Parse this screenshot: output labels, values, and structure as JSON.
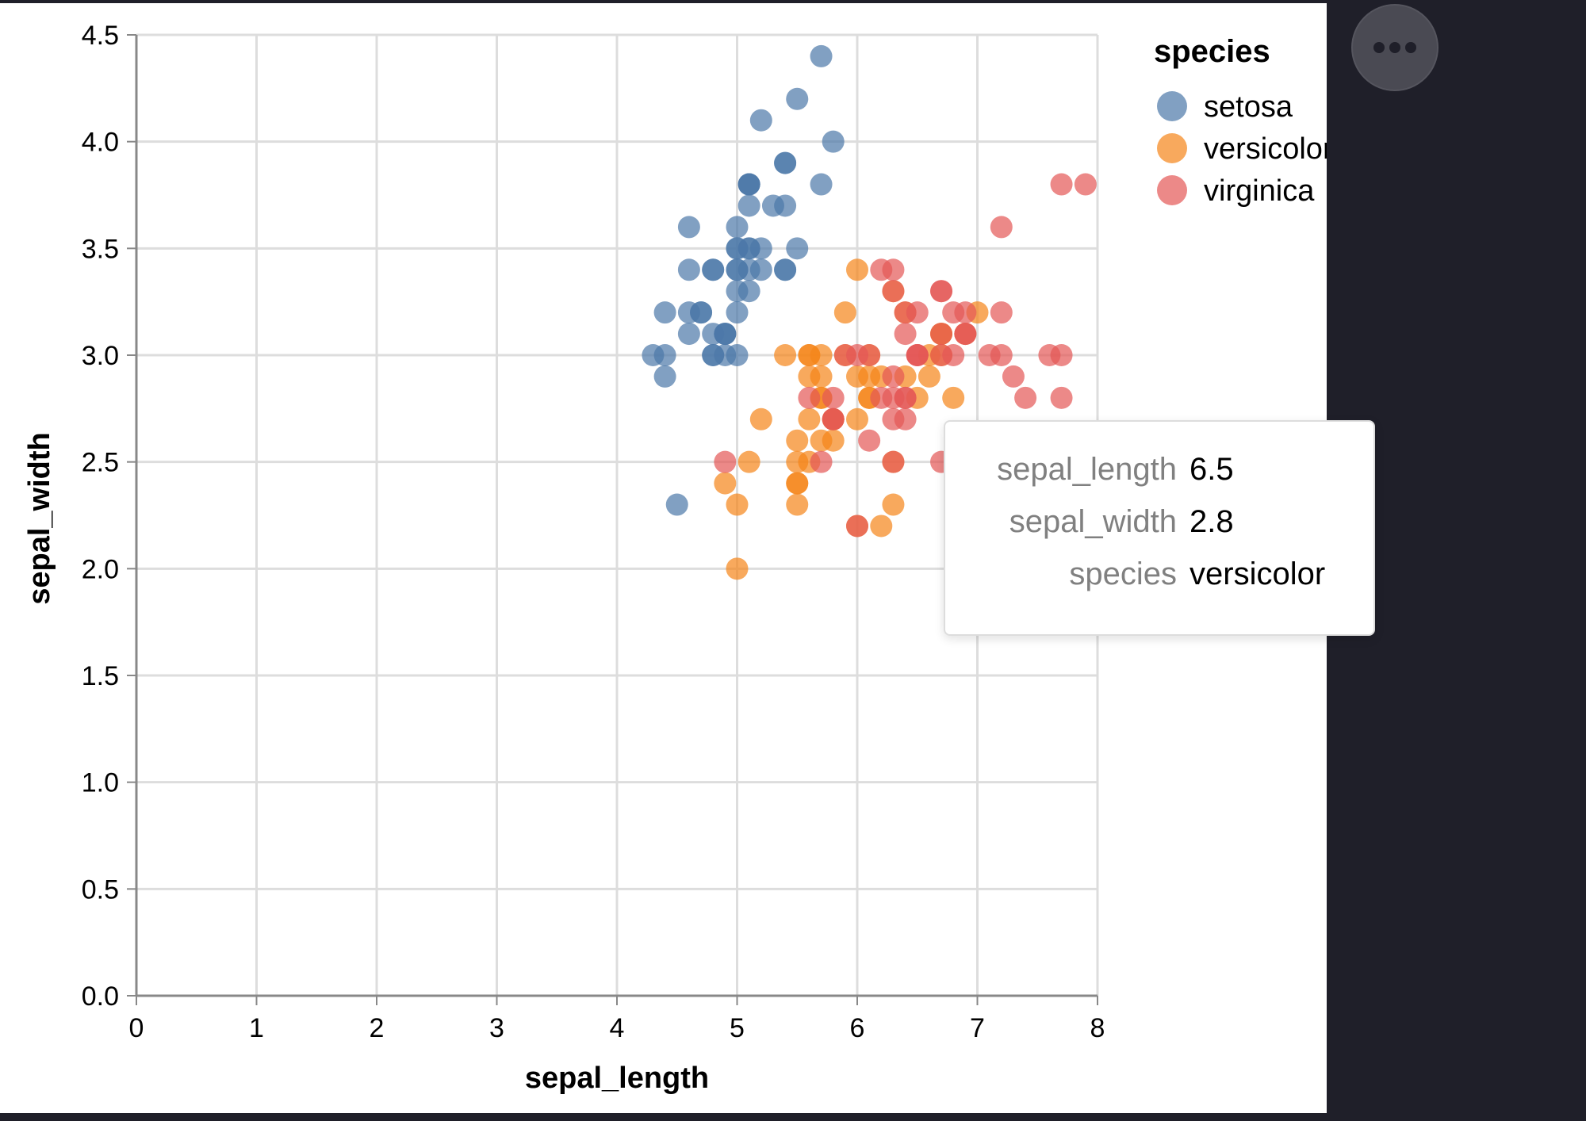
{
  "chart_data": {
    "type": "scatter",
    "xlabel": "sepal_length",
    "ylabel": "sepal_width",
    "xlim": [
      0,
      8
    ],
    "ylim": [
      0,
      4.5
    ],
    "xticks": [
      "0",
      "1",
      "2",
      "3",
      "4",
      "5",
      "6",
      "7",
      "8"
    ],
    "yticks": [
      "0.0",
      "0.5",
      "1.0",
      "1.5",
      "2.0",
      "2.5",
      "3.0",
      "3.5",
      "4.0",
      "4.5"
    ],
    "grid": true,
    "legend": {
      "title": "species",
      "position": "top-right"
    },
    "series": [
      {
        "name": "setosa",
        "color": "#4c78a8",
        "x": [
          5.1,
          4.9,
          4.7,
          4.6,
          5.0,
          5.4,
          4.6,
          5.0,
          4.4,
          4.9,
          5.4,
          4.8,
          4.8,
          4.3,
          5.8,
          5.7,
          5.4,
          5.1,
          5.7,
          5.1,
          5.4,
          5.1,
          4.6,
          5.1,
          4.8,
          5.0,
          5.0,
          5.2,
          5.2,
          4.7,
          4.8,
          5.4,
          5.2,
          5.5,
          4.9,
          5.0,
          5.5,
          4.9,
          4.4,
          5.1,
          5.0,
          4.5,
          4.4,
          5.0,
          5.1,
          4.8,
          5.1,
          4.6,
          5.3,
          5.0
        ],
        "y": [
          3.5,
          3.0,
          3.2,
          3.1,
          3.6,
          3.9,
          3.4,
          3.4,
          2.9,
          3.1,
          3.7,
          3.4,
          3.0,
          3.0,
          4.0,
          4.4,
          3.9,
          3.5,
          3.8,
          3.8,
          3.4,
          3.7,
          3.6,
          3.3,
          3.4,
          3.0,
          3.4,
          3.5,
          3.4,
          3.2,
          3.1,
          3.4,
          4.1,
          4.2,
          3.1,
          3.2,
          3.5,
          3.1,
          3.0,
          3.4,
          3.5,
          2.3,
          3.2,
          3.5,
          3.8,
          3.0,
          3.8,
          3.2,
          3.7,
          3.3
        ]
      },
      {
        "name": "versicolor",
        "color": "#f58518",
        "x": [
          7.0,
          6.4,
          6.9,
          5.5,
          6.5,
          5.7,
          6.3,
          4.9,
          6.6,
          5.2,
          5.0,
          5.9,
          6.0,
          6.1,
          5.6,
          6.7,
          5.6,
          5.8,
          6.2,
          5.6,
          5.9,
          6.1,
          6.3,
          6.1,
          6.4,
          6.6,
          6.8,
          6.7,
          6.0,
          5.7,
          5.5,
          5.5,
          5.8,
          6.0,
          5.4,
          6.0,
          6.7,
          6.3,
          5.6,
          5.5,
          5.5,
          6.1,
          5.8,
          5.0,
          5.6,
          5.7,
          5.7,
          6.2,
          5.1,
          5.7
        ],
        "y": [
          3.2,
          3.2,
          3.1,
          2.3,
          2.8,
          2.8,
          3.3,
          2.4,
          2.9,
          2.7,
          2.0,
          3.0,
          2.2,
          2.9,
          2.9,
          3.1,
          3.0,
          2.7,
          2.2,
          2.5,
          3.2,
          2.8,
          2.5,
          2.8,
          2.9,
          3.0,
          2.8,
          3.0,
          2.9,
          2.6,
          2.4,
          2.4,
          2.7,
          2.7,
          3.0,
          3.4,
          3.1,
          2.3,
          3.0,
          2.5,
          2.6,
          3.0,
          2.6,
          2.3,
          2.7,
          3.0,
          2.9,
          2.9,
          2.5,
          2.8
        ]
      },
      {
        "name": "virginica",
        "color": "#e45756",
        "x": [
          6.3,
          5.8,
          7.1,
          6.3,
          6.5,
          7.6,
          4.9,
          7.3,
          6.7,
          7.2,
          6.5,
          6.4,
          6.8,
          5.7,
          5.8,
          6.4,
          6.5,
          7.7,
          7.7,
          6.0,
          6.9,
          5.6,
          7.7,
          6.3,
          6.7,
          7.2,
          6.2,
          6.1,
          6.4,
          7.2,
          7.4,
          7.9,
          6.4,
          6.3,
          6.1,
          7.7,
          6.3,
          6.4,
          6.0,
          6.9,
          6.7,
          6.9,
          5.8,
          6.8,
          6.7,
          6.7,
          6.3,
          6.5,
          6.2,
          5.9
        ],
        "y": [
          3.3,
          2.7,
          3.0,
          2.9,
          3.0,
          3.0,
          2.5,
          2.9,
          2.5,
          3.6,
          3.2,
          2.7,
          3.0,
          2.5,
          2.8,
          3.2,
          3.0,
          3.8,
          2.6,
          2.2,
          3.2,
          2.8,
          2.8,
          2.7,
          3.3,
          3.2,
          2.8,
          3.0,
          2.8,
          3.0,
          2.8,
          3.8,
          2.8,
          2.8,
          2.6,
          3.0,
          3.4,
          3.1,
          3.0,
          3.1,
          3.1,
          3.1,
          2.7,
          3.2,
          3.3,
          3.0,
          2.5,
          3.0,
          3.4,
          3.0
        ]
      }
    ],
    "tooltip": {
      "rows": [
        {
          "key": "sepal_length",
          "value": "6.5"
        },
        {
          "key": "sepal_width",
          "value": "2.8"
        },
        {
          "key": "species",
          "value": "versicolor"
        }
      ]
    }
  },
  "actions_button": {
    "icon": "more-horizontal-icon"
  }
}
